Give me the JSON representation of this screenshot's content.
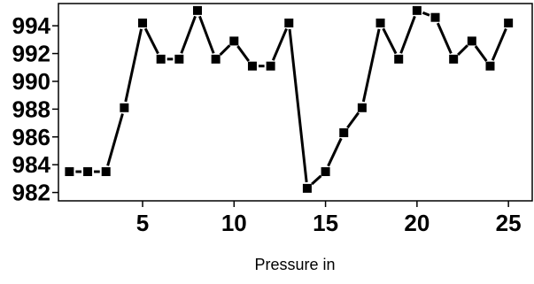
{
  "chart_data": {
    "type": "line",
    "title": "",
    "xlabel": "Pressure in",
    "ylabel": "",
    "x": [
      1,
      2,
      3,
      4,
      5,
      6,
      7,
      8,
      9,
      10,
      11,
      12,
      13,
      14,
      15,
      16,
      17,
      18,
      19,
      20,
      21,
      22,
      23,
      24,
      25
    ],
    "series": [
      {
        "name": "",
        "values": [
          983.5,
          983.5,
          983.5,
          988.1,
          994.2,
          991.6,
          991.6,
          995.1,
          991.6,
          992.9,
          991.1,
          991.1,
          994.2,
          982.3,
          983.5,
          986.3,
          988.1,
          994.2,
          991.6,
          995.1,
          994.6,
          991.6,
          992.9,
          991.1,
          994.2
        ]
      }
    ],
    "xlim": [
      0.4,
      26.3
    ],
    "ylim": [
      981.4,
      995.6
    ],
    "x_ticks": [
      5,
      10,
      15,
      20,
      25
    ],
    "y_ticks": [
      982,
      984,
      986,
      988,
      990,
      992,
      994
    ],
    "grid": false,
    "legend": "none",
    "line_color": "#000000",
    "marker": "square"
  }
}
